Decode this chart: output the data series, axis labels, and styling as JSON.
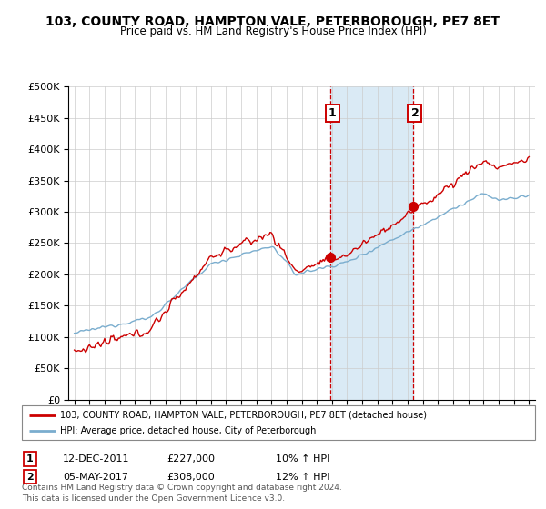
{
  "title": "103, COUNTY ROAD, HAMPTON VALE, PETERBOROUGH, PE7 8ET",
  "subtitle": "Price paid vs. HM Land Registry's House Price Index (HPI)",
  "legend_line1": "103, COUNTY ROAD, HAMPTON VALE, PETERBOROUGH, PE7 8ET (detached house)",
  "legend_line2": "HPI: Average price, detached house, City of Peterborough",
  "annotation1_date": "12-DEC-2011",
  "annotation1_price": "£227,000",
  "annotation1_hpi": "10% ↑ HPI",
  "annotation2_date": "05-MAY-2017",
  "annotation2_price": "£308,000",
  "annotation2_hpi": "12% ↑ HPI",
  "footer": "Contains HM Land Registry data © Crown copyright and database right 2024.\nThis data is licensed under the Open Government Licence v3.0.",
  "red_color": "#cc0000",
  "blue_color": "#7aadce",
  "blue_fill": "#daeaf5",
  "sale1_year": 2011.92,
  "sale1_price": 227000,
  "sale2_year": 2017.37,
  "sale2_price": 308000,
  "ylim": [
    0,
    500000
  ],
  "xlim_left": 1994.6,
  "xlim_right": 2025.4,
  "yticks": [
    0,
    50000,
    100000,
    150000,
    200000,
    250000,
    300000,
    350000,
    400000,
    450000,
    500000
  ]
}
